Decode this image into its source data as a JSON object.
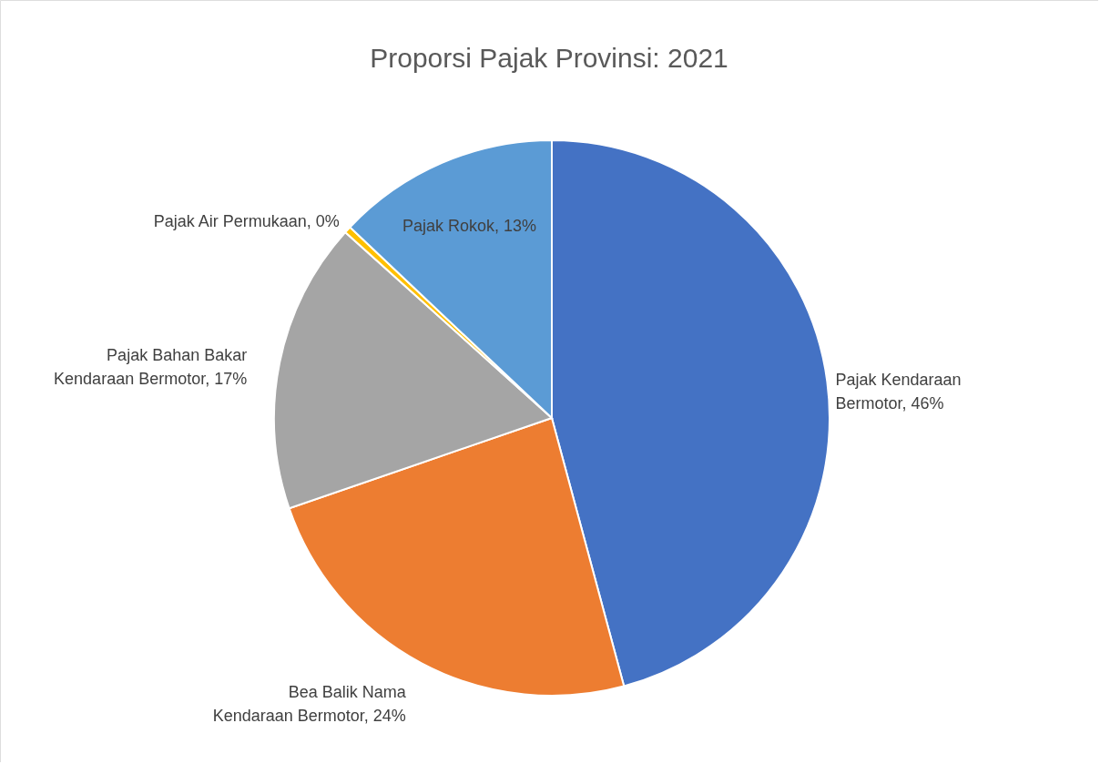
{
  "chart_data": {
    "type": "pie",
    "title": "Proporsi Pajak Provinsi: 2021",
    "categories": [
      "Pajak Kendaraan Bermotor",
      "Bea Balik Nama Kendaraan Bermotor",
      "Pajak Bahan Bakar Kendaraan Bermotor",
      "Pajak Air Permukaan",
      "Pajak Rokok"
    ],
    "values": [
      46,
      24,
      17,
      0.4,
      13
    ],
    "value_labels": [
      "46%",
      "24%",
      "17%",
      "0%",
      "13%"
    ],
    "colors": [
      "#4472c4",
      "#ed7d31",
      "#a5a5a5",
      "#ffc000",
      "#5b9bd5"
    ],
    "legend": false
  }
}
